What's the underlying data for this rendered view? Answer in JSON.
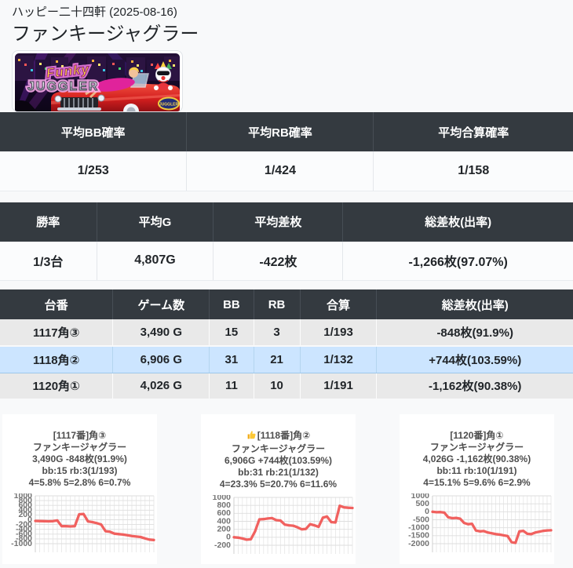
{
  "page": {
    "breadcrumb": "ハッピー二十四軒 (2025-08-16)",
    "title": "ファンキージャグラー"
  },
  "banner": {
    "logo_line1": "Funky",
    "logo_line2": "JUGGLER",
    "badge_text": "JUGGLER"
  },
  "probability_table": {
    "headers": [
      "平均BB確率",
      "平均RB確率",
      "平均合算確率"
    ],
    "values": [
      "1/253",
      "1/424",
      "1/158"
    ]
  },
  "performance_table": {
    "headers": [
      "勝率",
      "平均G",
      "平均差枚",
      "総差枚(出率)"
    ],
    "values": [
      "1/3台",
      "4,807G",
      "-422枚",
      "-1,266枚(97.07%)"
    ]
  },
  "machine_table": {
    "headers": [
      "台番",
      "ゲーム数",
      "BB",
      "RB",
      "合算",
      "総差枚(出率)"
    ],
    "rows": [
      {
        "cells": [
          "1117角③",
          "3,490 G",
          "15",
          "3",
          "1/193",
          "-848枚(91.9%)"
        ],
        "highlight": false
      },
      {
        "cells": [
          "1118角②",
          "6,906 G",
          "31",
          "21",
          "1/132",
          "+744枚(103.59%)"
        ],
        "highlight": true
      },
      {
        "cells": [
          "1120角①",
          "4,026 G",
          "11",
          "10",
          "1/191",
          "-1,162枚(90.38%)"
        ],
        "highlight": false
      }
    ]
  },
  "chart_data": [
    {
      "type": "line",
      "title": "[1117番]角③",
      "icon": "",
      "machine": "ファンキージャグラー",
      "summary": "3,490G -848枚(91.9%)",
      "bonus": "bb:15 rb:3(1/193)",
      "setting_estimate": "4=5.8% 5=2.8% 6=0.7%",
      "xlabel": "",
      "ylabel": "",
      "ylim": [
        -1000,
        1000
      ],
      "ytick_step": 200,
      "grid": true,
      "legend": "none",
      "series_name": "差枚",
      "values": [
        -50,
        -55,
        -60,
        -65,
        -60,
        -30,
        -270,
        -270,
        -280,
        -270,
        230,
        240,
        -70,
        -100,
        -140,
        -200,
        -480,
        -500,
        -580,
        -600,
        -620,
        -650,
        -680,
        -700,
        -720,
        -780,
        -830,
        -845
      ]
    },
    {
      "type": "line",
      "title": "[1118番]角②",
      "icon": "thumbs-up",
      "machine": "ファンキージャグラー",
      "summary": "6,906G +744枚(103.59%)",
      "bonus": "bb:31 rb:21(1/132)",
      "setting_estimate": "4=23.3% 5=20.7% 6=11.6%",
      "xlabel": "",
      "ylabel": "",
      "ylim": [
        -200,
        1000
      ],
      "ytick_step": 200,
      "grid": true,
      "legend": "none",
      "series_name": "差枚",
      "values": [
        0,
        -10,
        -30,
        -60,
        -50,
        150,
        450,
        455,
        470,
        480,
        430,
        420,
        320,
        300,
        290,
        250,
        200,
        210,
        330,
        300,
        260,
        490,
        520,
        380,
        370,
        790,
        750,
        740,
        735
      ]
    },
    {
      "type": "line",
      "title": "[1120番]角①",
      "icon": "",
      "machine": "ファンキージャグラー",
      "summary": "4,026G -1,162枚(90.38%)",
      "bonus": "bb:11 rb:10(1/191)",
      "setting_estimate": "4=15.1% 5=9.6% 6=2.9%",
      "xlabel": "",
      "ylabel": "",
      "ylim": [
        -2000,
        1000
      ],
      "ytick_step": 500,
      "grid": true,
      "legend": "none",
      "series_name": "差枚",
      "values": [
        0,
        -30,
        -20,
        -50,
        -350,
        -400,
        -380,
        -430,
        -700,
        -780,
        -750,
        -1180,
        -1230,
        -1210,
        -1300,
        -1350,
        -1400,
        -1430,
        -1480,
        -1520,
        -1900,
        -1950,
        -1230,
        -1200,
        -1380,
        -1400,
        -1300,
        -1250,
        -1200,
        -1170,
        -1160
      ]
    }
  ],
  "colors": {
    "page_bg": "#f8f9fa",
    "header_bg": "#343a40",
    "row_bg": "#e9e9e9",
    "highlight_row_bg": "#cce5ff",
    "line_color": "#f0504e"
  }
}
